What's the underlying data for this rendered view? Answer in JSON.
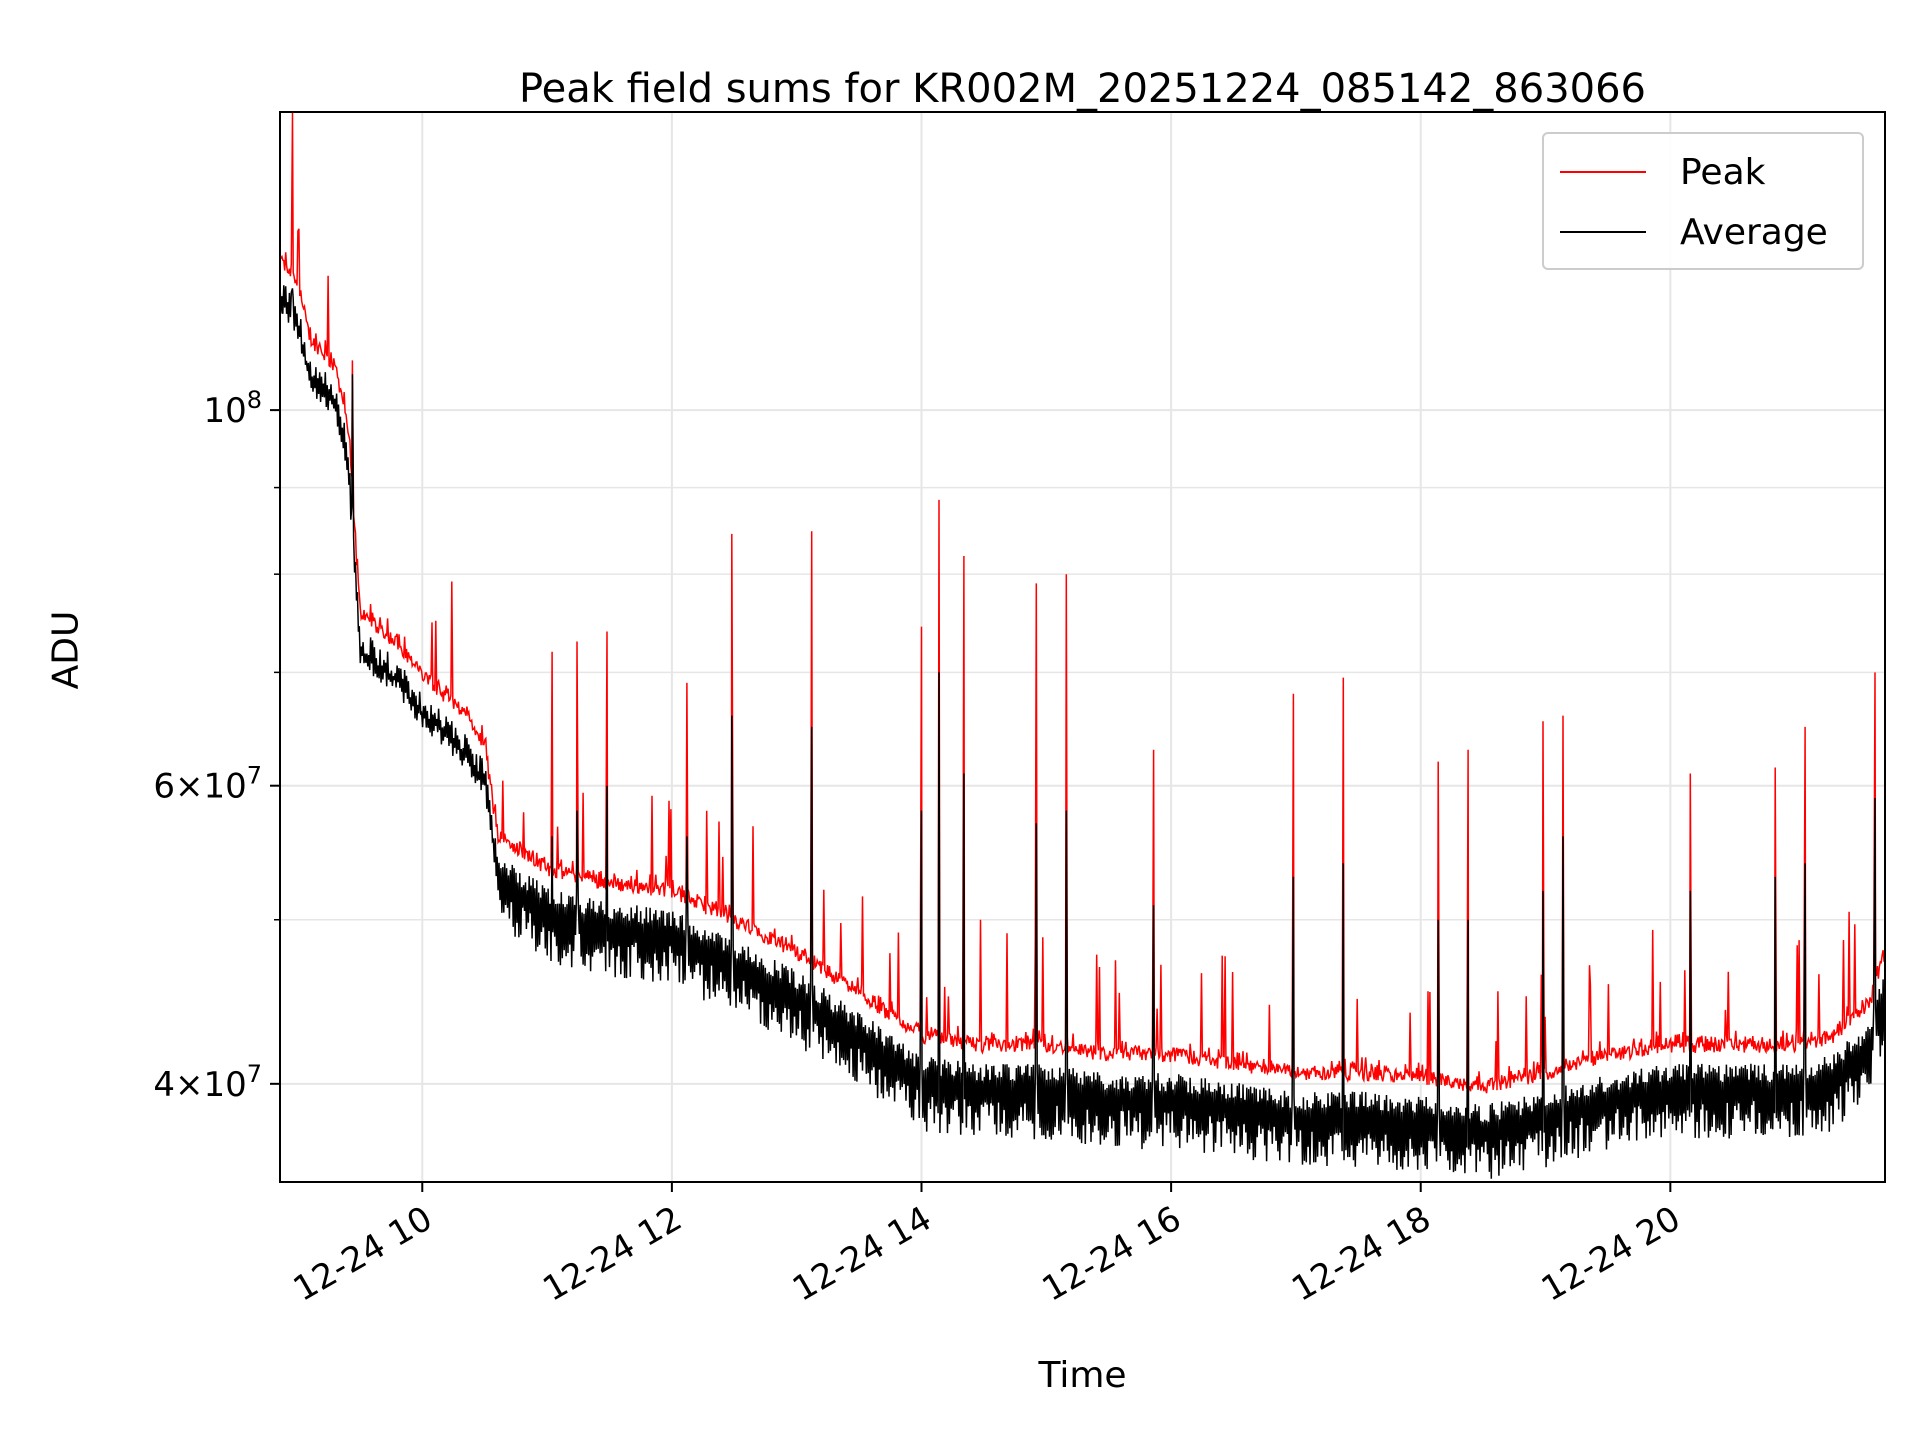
{
  "chart_data": {
    "type": "line",
    "title": "Peak field sums for KR002M_20251224_085142_863066",
    "xlabel": "Time",
    "ylabel": "ADU",
    "y_scale": "log",
    "ylim": [
      35000000,
      150000000
    ],
    "xlim_hours": [
      8.86,
      21.72
    ],
    "x_date": "12-24",
    "grid": true,
    "legend_position": "top-right",
    "x_ticks": [
      "12-24 10",
      "12-24 12",
      "12-24 14",
      "12-24 16",
      "12-24 18",
      "12-24 20"
    ],
    "x_tick_hours": [
      10,
      12,
      14,
      16,
      18,
      20
    ],
    "y_ticks": [
      {
        "value": 100000000,
        "base": "10",
        "exp": "8",
        "mantissa": ""
      },
      {
        "value": 60000000,
        "base": "10",
        "exp": "7",
        "mantissa": "6×"
      },
      {
        "value": 40000000,
        "base": "10",
        "exp": "7",
        "mantissa": "4×"
      }
    ],
    "y_minor_ticks": [
      50000000,
      70000000,
      80000000,
      90000000
    ],
    "series": [
      {
        "name": "Peak",
        "color": "#ff0000"
      },
      {
        "name": "Average",
        "color": "#000000"
      }
    ],
    "trend": {
      "hours": [
        8.86,
        9.0,
        9.1,
        9.3,
        9.4,
        9.5,
        9.8,
        10.0,
        10.3,
        10.5,
        10.6,
        11.0,
        11.5,
        12.0,
        12.5,
        13.0,
        13.5,
        14.0,
        14.5,
        15.0,
        15.5,
        16.0,
        16.5,
        17.0,
        17.5,
        18.0,
        18.5,
        19.0,
        19.5,
        20.0,
        20.5,
        21.0,
        21.3,
        21.6,
        21.72
      ],
      "average": [
        118000000,
        114000000,
        106000000,
        102000000,
        95000000,
        73000000,
        70000000,
        67000000,
        64000000,
        61000000,
        54000000,
        51500000,
        50500000,
        50000000,
        48000000,
        46000000,
        43500000,
        41000000,
        40500000,
        40500000,
        40000000,
        40000000,
        39500000,
        39000000,
        39000000,
        38800000,
        38300000,
        39000000,
        40000000,
        40500000,
        40500000,
        40500000,
        41000000,
        43000000,
        46000000
      ],
      "peak_offset": 1.03
    },
    "spikes": [
      {
        "hour": 8.96,
        "peak": 150000000,
        "average": 118000000
      },
      {
        "hour": 9.44,
        "peak": 107000000,
        "average": 105000000
      },
      {
        "hour": 11.04,
        "peak": 72000000,
        "average": 56000000
      },
      {
        "hour": 11.24,
        "peak": 73000000,
        "average": 58000000
      },
      {
        "hour": 11.48,
        "peak": 74000000,
        "average": 60000000
      },
      {
        "hour": 12.12,
        "peak": 69000000,
        "average": 56000000
      },
      {
        "hour": 12.48,
        "peak": 84500000,
        "average": 66000000
      },
      {
        "hour": 13.12,
        "peak": 84800000,
        "average": 65000000
      },
      {
        "hour": 14.0,
        "peak": 74500000,
        "average": 58000000
      },
      {
        "hour": 14.14,
        "peak": 88500000,
        "average": 70000000
      },
      {
        "hour": 14.34,
        "peak": 82000000,
        "average": 61000000
      },
      {
        "hour": 14.92,
        "peak": 79000000,
        "average": 57000000
      },
      {
        "hour": 15.16,
        "peak": 80000000,
        "average": 58000000
      },
      {
        "hour": 15.86,
        "peak": 63000000,
        "average": 51000000
      },
      {
        "hour": 16.98,
        "peak": 68000000,
        "average": 53000000
      },
      {
        "hour": 17.38,
        "peak": 69500000,
        "average": 54000000
      },
      {
        "hour": 18.14,
        "peak": 62000000,
        "average": 50000000
      },
      {
        "hour": 18.38,
        "peak": 63000000,
        "average": 50000000
      },
      {
        "hour": 18.98,
        "peak": 65500000,
        "average": 52000000
      },
      {
        "hour": 19.14,
        "peak": 66000000,
        "average": 56000000
      },
      {
        "hour": 20.16,
        "peak": 61000000,
        "average": 52000000
      },
      {
        "hour": 20.84,
        "peak": 61500000,
        "average": 53000000
      },
      {
        "hour": 21.08,
        "peak": 65000000,
        "average": 54000000
      },
      {
        "hour": 21.64,
        "peak": 70000000,
        "average": 59000000
      }
    ]
  }
}
